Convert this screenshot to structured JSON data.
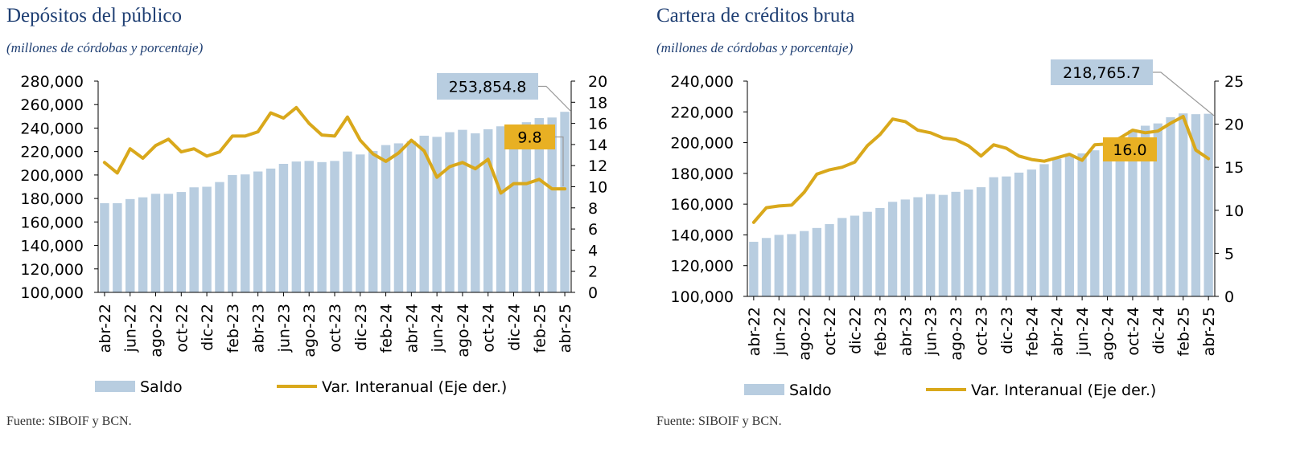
{
  "colors": {
    "bar": "#b8cde0",
    "line": "#d9a81b",
    "title": "#1f3f73",
    "callout_bar_bg": "#b8cde0",
    "callout_line_bg": "#e8b023"
  },
  "charts": [
    {
      "title": "Depósitos del público",
      "subtitle": "(millones de córdobas y porcentaje)",
      "source": "Fuente: SIBOIF y BCN.",
      "legend": {
        "bar_label": "Saldo",
        "line_label": "Var. Interanual (Eje der.)"
      },
      "callouts": {
        "bar_value": "253,854.8",
        "line_value": "9.8"
      },
      "left_ticks": [
        "100,000",
        "120,000",
        "140,000",
        "160,000",
        "180,000",
        "200,000",
        "220,000",
        "240,000",
        "260,000",
        "280,000"
      ],
      "right_ticks": [
        "0",
        "2",
        "4",
        "6",
        "8",
        "10",
        "12",
        "14",
        "16",
        "18",
        "20"
      ],
      "x_ticks": [
        "abr-22",
        "jun-22",
        "ago-22",
        "oct-22",
        "dic-22",
        "feb-23",
        "abr-23",
        "jun-23",
        "ago-23",
        "oct-23",
        "dic-23",
        "feb-24",
        "abr-24",
        "jun-24",
        "ago-24",
        "oct-24",
        "dic-24",
        "feb-25",
        "abr-25"
      ]
    },
    {
      "title": "Cartera de créditos bruta",
      "subtitle": "(millones de córdobas y porcentaje)",
      "source": "Fuente: SIBOIF y BCN.",
      "legend": {
        "bar_label": "Saldo",
        "line_label": "Var. Interanual (Eje der.)"
      },
      "callouts": {
        "bar_value": "218,765.7",
        "line_value": "16.0"
      },
      "left_ticks": [
        "100,000",
        "120,000",
        "140,000",
        "160,000",
        "180,000",
        "200,000",
        "220,000",
        "240,000"
      ],
      "right_ticks": [
        "0",
        "5",
        "10",
        "15",
        "20",
        "25"
      ],
      "x_ticks": [
        "abr-22",
        "jun-22",
        "ago-22",
        "oct-22",
        "dic-22",
        "feb-23",
        "abr-23",
        "jun-23",
        "ago-23",
        "oct-23",
        "dic-23",
        "feb-24",
        "abr-24",
        "jun-24",
        "ago-24",
        "oct-24",
        "dic-24",
        "feb-25",
        "abr-25"
      ]
    }
  ],
  "chart_data": [
    {
      "type": "bar",
      "title": "Depósitos del público",
      "categories": [
        "abr-22",
        "may-22",
        "jun-22",
        "jul-22",
        "ago-22",
        "sep-22",
        "oct-22",
        "nov-22",
        "dic-22",
        "ene-23",
        "feb-23",
        "mar-23",
        "abr-23",
        "may-23",
        "jun-23",
        "jul-23",
        "ago-23",
        "sep-23",
        "oct-23",
        "nov-23",
        "dic-23",
        "ene-24",
        "feb-24",
        "mar-24",
        "abr-24",
        "may-24",
        "jun-24",
        "jul-24",
        "ago-24",
        "sep-24",
        "oct-24",
        "nov-24",
        "dic-24",
        "ene-25",
        "feb-25",
        "mar-25",
        "abr-25"
      ],
      "ylim_left": [
        100000,
        280000
      ],
      "ylim_right": [
        0,
        20
      ],
      "series": [
        {
          "name": "Saldo",
          "type": "bar",
          "axis": "left",
          "values": [
            176000,
            176000,
            179500,
            181000,
            184000,
            184000,
            185500,
            189500,
            190000,
            194000,
            200000,
            200500,
            203000,
            205500,
            209500,
            211500,
            212000,
            211000,
            212000,
            220000,
            217500,
            220500,
            225500,
            227000,
            229000,
            233500,
            232500,
            236500,
            238500,
            235500,
            239000,
            241500,
            243000,
            245000,
            248500,
            249000,
            253854.8
          ]
        },
        {
          "name": "Var. Interanual (Eje der.)",
          "type": "line",
          "axis": "right",
          "values": [
            12.3,
            11.3,
            13.6,
            12.7,
            13.9,
            14.5,
            13.3,
            13.6,
            12.9,
            13.3,
            14.8,
            14.8,
            15.2,
            17.0,
            16.5,
            17.5,
            16.0,
            14.9,
            14.8,
            16.6,
            14.4,
            13.1,
            12.4,
            13.2,
            14.4,
            13.4,
            10.9,
            11.9,
            12.3,
            11.7,
            12.6,
            9.4,
            10.3,
            10.3,
            10.7,
            9.8,
            9.8
          ]
        }
      ]
    },
    {
      "type": "bar",
      "title": "Cartera de créditos bruta",
      "categories": [
        "abr-22",
        "may-22",
        "jun-22",
        "jul-22",
        "ago-22",
        "sep-22",
        "oct-22",
        "nov-22",
        "dic-22",
        "ene-23",
        "feb-23",
        "mar-23",
        "abr-23",
        "may-23",
        "jun-23",
        "jul-23",
        "ago-23",
        "sep-23",
        "oct-23",
        "nov-23",
        "dic-23",
        "ene-24",
        "feb-24",
        "mar-24",
        "abr-24",
        "may-24",
        "jun-24",
        "jul-24",
        "ago-24",
        "sep-24",
        "oct-24",
        "nov-24",
        "dic-24",
        "ene-25",
        "feb-25",
        "mar-25",
        "abr-25"
      ],
      "ylim_left": [
        100000,
        240000
      ],
      "ylim_right": [
        0,
        25
      ],
      "series": [
        {
          "name": "Saldo",
          "type": "bar",
          "axis": "left",
          "values": [
            135500,
            138000,
            140000,
            140500,
            142500,
            144500,
            147000,
            151000,
            152500,
            155000,
            157500,
            161500,
            163000,
            164500,
            166500,
            166000,
            168000,
            169500,
            171000,
            177500,
            178000,
            180500,
            182500,
            186000,
            189500,
            192000,
            193000,
            195000,
            198000,
            203500,
            208000,
            211000,
            212500,
            216500,
            219000,
            218500,
            218765.7
          ]
        },
        {
          "name": "Var. Interanual (Eje der.)",
          "type": "line",
          "axis": "right",
          "values": [
            8.6,
            10.3,
            10.5,
            10.6,
            12.1,
            14.2,
            14.7,
            15.0,
            15.6,
            17.5,
            18.8,
            20.6,
            20.3,
            19.3,
            19.0,
            18.4,
            18.2,
            17.5,
            16.3,
            17.6,
            17.2,
            16.3,
            15.9,
            15.7,
            16.1,
            16.5,
            15.8,
            17.6,
            17.7,
            18.4,
            19.3,
            19.0,
            19.2,
            20.1,
            20.9,
            17.0,
            16.0
          ]
        }
      ]
    }
  ]
}
